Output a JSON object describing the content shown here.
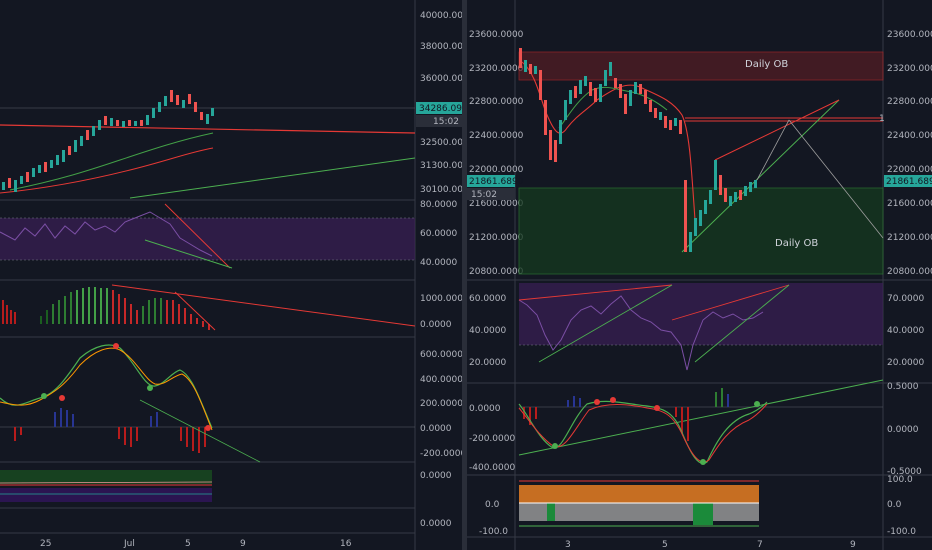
{
  "left_chart": {
    "price_axis": [
      "40000.0000",
      "38000.0000",
      "36000.0000",
      "32500.0000",
      "31300.0000",
      "30100.0000"
    ],
    "price_tag": "34286.0986",
    "time_tag": "15:02",
    "rsi_axis": [
      "80.0000",
      "60.0000",
      "40.0000"
    ],
    "macd_axis": [
      "1000.0000",
      "0.0000"
    ],
    "osc_axis": [
      "600.0000",
      "400.0000",
      "200.0000",
      "0.0000",
      "-200.0000"
    ],
    "vol_axis": [
      "0.0000"
    ],
    "last_axis": [
      "0.0000"
    ],
    "time_axis": [
      "25",
      "Jul",
      "5",
      "9",
      "16"
    ]
  },
  "right_chart": {
    "price_axis": [
      "23600.0000",
      "23200.0000",
      "22800.0000",
      "22400.0000",
      "22000.0000",
      "21600.0000",
      "21200.0000",
      "20800.0000"
    ],
    "left_axis": [
      "23600.0000",
      "23200.0000",
      "22800.0000",
      "22400.0000",
      "22000.0000",
      "21600.0000",
      "21200.0000",
      "20800.0000"
    ],
    "price_tag": "21861.6890",
    "time_tag": "15:02",
    "ob_top_label": "Daily OB",
    "ob_bottom_label": "Daily OB",
    "rsi_axis": [
      "60.0000",
      "40.0000",
      "20.0000"
    ],
    "rsi_right_axis": [
      "70.0000",
      "40.0000",
      "20.0000"
    ],
    "osc_axis": [
      "0.0000",
      "-200.0000",
      "-400.0000"
    ],
    "osc_right_axis": [
      "0.5000",
      "0.0000",
      "-0.5000"
    ],
    "bottom_axis": [
      "0.0",
      "-100.0"
    ],
    "bottom_right_axis": [
      "100.0",
      "0.0",
      "-100.0"
    ],
    "time_axis": [
      "3",
      "5",
      "7",
      "9"
    ],
    "axis_stub": "1"
  }
}
